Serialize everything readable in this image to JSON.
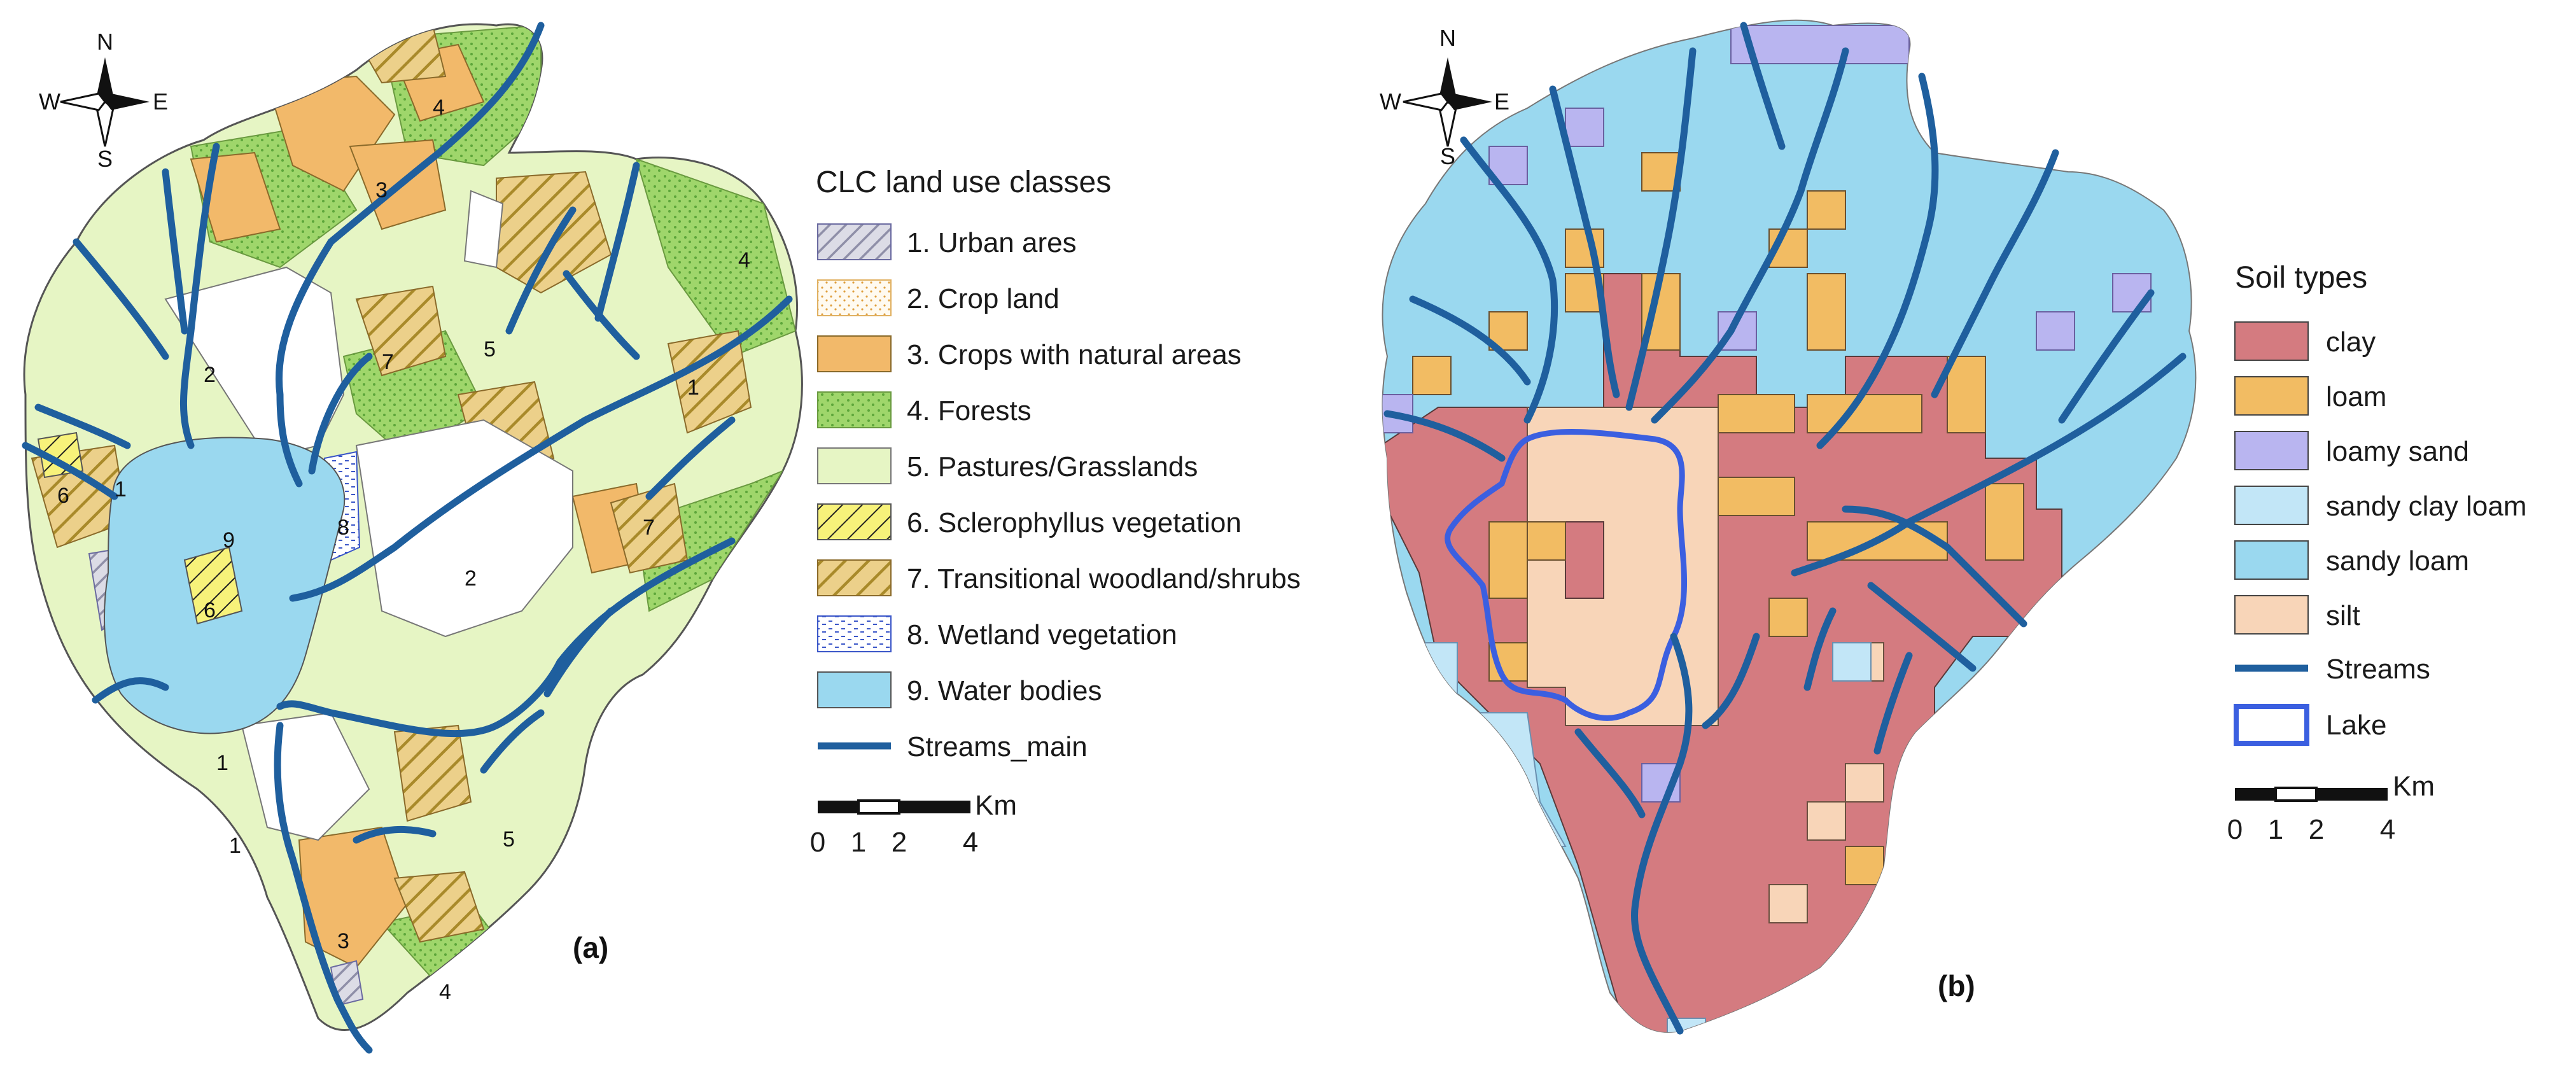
{
  "colors": {
    "urban": "#c9c9d6",
    "crop": "#fdf6e3",
    "crops_natural": "#f2b96a",
    "forest": "#9fd66b",
    "pasture": "#e6f5c4",
    "sclerophyll": "#f5f07a",
    "transitional": "#e6c16a",
    "wetland": "#ffffff",
    "water": "#9ad8ef",
    "stream": "#1f5f9e",
    "clay": "#d47b80",
    "loam": "#f2bc63",
    "loamy_sand": "#b9b5f0",
    "sandy_clay_loam": "#c2e6f7",
    "sandy_loam": "#9ad8ef",
    "silt": "#f8d5b8",
    "lake": "#3b5fe0"
  },
  "compass_a": {
    "n": "N",
    "s": "S",
    "e": "E",
    "w": "W"
  },
  "compass_b": {
    "n": "N",
    "s": "S",
    "e": "E",
    "w": "W"
  },
  "panel_a": {
    "label": "(a)",
    "map_labels": [
      "1",
      "2",
      "3",
      "4",
      "5",
      "6",
      "7",
      "8",
      "9"
    ],
    "legend": {
      "title": "CLC land use classes",
      "items": [
        {
          "label": "1. Urban ares",
          "icon": "urban-swatch"
        },
        {
          "label": "2. Crop land",
          "icon": "crop-swatch"
        },
        {
          "label": "3. Crops with natural areas",
          "icon": "crops-natural-swatch"
        },
        {
          "label": "4. Forests",
          "icon": "forest-swatch"
        },
        {
          "label": "5. Pastures/Grasslands",
          "icon": "pasture-swatch"
        },
        {
          "label": "6. Sclerophyllus vegetation",
          "icon": "sclerophyll-swatch"
        },
        {
          "label": "7. Transitional woodland/shrubs",
          "icon": "transitional-swatch"
        },
        {
          "label": "8. Wetland vegetation",
          "icon": "wetland-swatch"
        },
        {
          "label": "9. Water bodies",
          "icon": "water-swatch"
        },
        {
          "label": "Streams_main",
          "icon": "stream-line"
        }
      ]
    },
    "scale": {
      "unit": "Km",
      "ticks": [
        "0",
        "1",
        "2",
        "4"
      ]
    }
  },
  "panel_b": {
    "label": "(b)",
    "legend": {
      "title": "Soil types",
      "items": [
        {
          "label": "clay",
          "icon": "clay-swatch"
        },
        {
          "label": "loam",
          "icon": "loam-swatch"
        },
        {
          "label": "loamy sand",
          "icon": "loamy-sand-swatch"
        },
        {
          "label": "sandy clay loam",
          "icon": "sandy-clay-loam-swatch"
        },
        {
          "label": "sandy loam",
          "icon": "sandy-loam-swatch"
        },
        {
          "label": "silt",
          "icon": "silt-swatch"
        },
        {
          "label": "Streams",
          "icon": "stream-line"
        },
        {
          "label": "Lake",
          "icon": "lake-outline"
        }
      ]
    },
    "scale": {
      "unit": "Km",
      "ticks": [
        "0",
        "1",
        "2",
        "4"
      ]
    }
  }
}
